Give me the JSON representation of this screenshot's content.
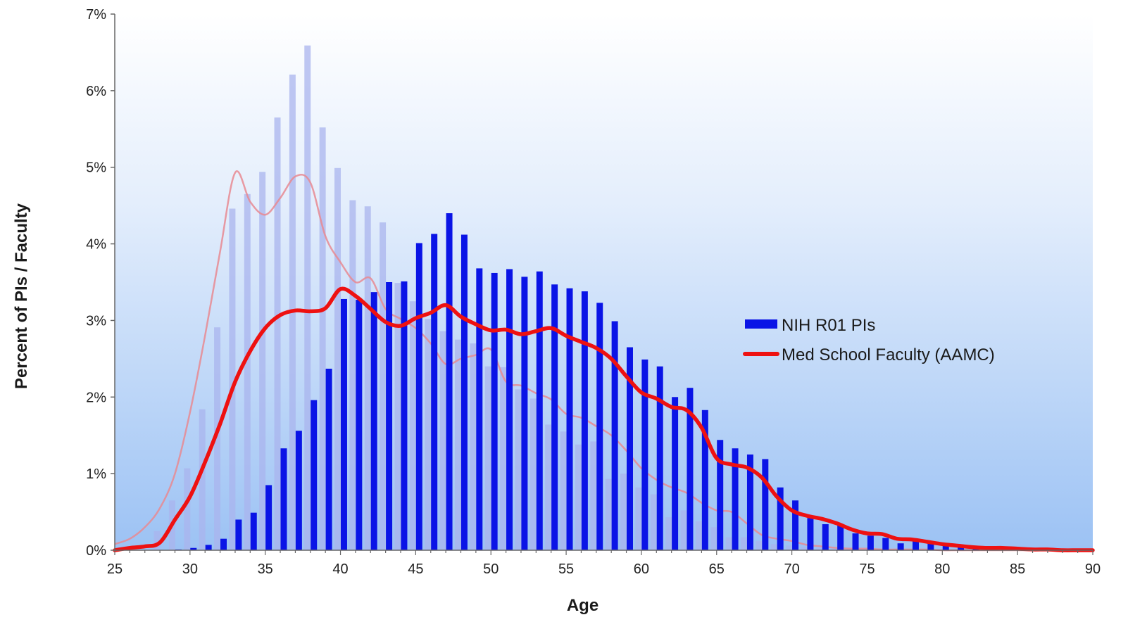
{
  "chart_data": {
    "type": "bar",
    "title": "",
    "xlabel": "Age",
    "ylabel": "Percent of PIs / Faculty",
    "xlim": [
      25,
      90
    ],
    "ylim": [
      0,
      7
    ],
    "x_ticks": [
      "25",
      "30",
      "35",
      "40",
      "45",
      "50",
      "55",
      "60",
      "65",
      "70",
      "75",
      "80",
      "85",
      "90"
    ],
    "y_ticks": [
      "0%",
      "1%",
      "2%",
      "3%",
      "4%",
      "5%",
      "6%",
      "7%"
    ],
    "y_unit": "%",
    "grid": false,
    "legend_position": "right",
    "series": [
      {
        "name": "NIH R01 PIs",
        "kind": "bar",
        "color": "#0a14e6",
        "x": [
          29,
          30,
          31,
          32,
          33,
          34,
          35,
          36,
          37,
          38,
          39,
          40,
          41,
          42,
          43,
          44,
          45,
          46,
          47,
          48,
          49,
          50,
          51,
          52,
          53,
          54,
          55,
          56,
          57,
          58,
          59,
          60,
          61,
          62,
          63,
          64,
          65,
          66,
          67,
          68,
          69,
          70,
          71,
          72,
          73,
          74,
          75,
          76,
          77,
          78,
          79,
          80,
          81,
          82,
          83
        ],
        "values": [
          0.01,
          0.03,
          0.07,
          0.15,
          0.4,
          0.49,
          0.85,
          1.33,
          1.56,
          1.96,
          2.37,
          3.28,
          3.27,
          3.37,
          3.5,
          3.51,
          4.01,
          4.13,
          4.4,
          4.12,
          3.68,
          3.62,
          3.67,
          3.57,
          3.64,
          3.47,
          3.42,
          3.38,
          3.23,
          2.99,
          2.65,
          2.49,
          2.4,
          2.0,
          2.12,
          1.83,
          1.44,
          1.33,
          1.25,
          1.19,
          0.82,
          0.65,
          0.42,
          0.34,
          0.33,
          0.22,
          0.19,
          0.16,
          0.09,
          0.12,
          0.09,
          0.07,
          0.06,
          0.04,
          0.03
        ]
      },
      {
        "name": "Med School Faculty (AAMC)",
        "kind": "line",
        "color": "#ee1111",
        "x": [
          25,
          26,
          27,
          28,
          29,
          30,
          31,
          32,
          33,
          34,
          35,
          36,
          37,
          38,
          39,
          40,
          41,
          42,
          43,
          44,
          45,
          46,
          47,
          48,
          49,
          50,
          51,
          52,
          53,
          54,
          55,
          56,
          57,
          58,
          59,
          60,
          61,
          62,
          63,
          64,
          65,
          66,
          67,
          68,
          69,
          70,
          71,
          72,
          73,
          74,
          75,
          76,
          77,
          78,
          79,
          80,
          81,
          82,
          83,
          84,
          85,
          86,
          87,
          88,
          89,
          90
        ],
        "values": [
          0.0,
          0.03,
          0.05,
          0.1,
          0.4,
          0.7,
          1.15,
          1.65,
          2.2,
          2.6,
          2.9,
          3.07,
          3.13,
          3.12,
          3.16,
          3.41,
          3.32,
          3.15,
          2.98,
          2.93,
          3.03,
          3.1,
          3.2,
          3.05,
          2.95,
          2.87,
          2.88,
          2.82,
          2.86,
          2.9,
          2.8,
          2.72,
          2.64,
          2.5,
          2.27,
          2.06,
          1.98,
          1.87,
          1.83,
          1.6,
          1.2,
          1.12,
          1.08,
          0.95,
          0.7,
          0.52,
          0.45,
          0.41,
          0.35,
          0.27,
          0.22,
          0.21,
          0.15,
          0.14,
          0.11,
          0.08,
          0.06,
          0.04,
          0.03,
          0.03,
          0.02,
          0.01,
          0.01,
          0.0,
          0.0,
          0.0
        ]
      },
      {
        "name": "",
        "kind": "bar-faded",
        "color": "#aab4ee",
        "x": [
          28,
          29,
          30,
          31,
          32,
          33,
          34,
          35,
          36,
          37,
          38,
          39,
          40,
          41,
          42,
          43,
          44,
          45,
          46,
          47,
          48,
          49,
          50,
          51,
          52,
          53,
          54,
          55,
          56,
          57,
          58,
          59,
          60,
          61,
          62,
          63,
          64,
          65,
          66,
          67,
          68,
          69,
          70,
          71,
          72,
          73,
          74,
          75
        ],
        "values": [
          0.25,
          0.65,
          1.07,
          1.84,
          2.91,
          4.46,
          4.65,
          4.94,
          5.65,
          6.21,
          6.59,
          5.52,
          4.99,
          4.57,
          4.49,
          4.28,
          3.49,
          3.25,
          3.02,
          2.86,
          2.75,
          2.7,
          2.4,
          2.39,
          2.1,
          1.98,
          1.64,
          1.55,
          1.38,
          1.42,
          0.93,
          1.0,
          0.82,
          0.73,
          0.43,
          0.52,
          0.38,
          0.3,
          0.17,
          0.17,
          0.12,
          0.08,
          0.06,
          0.04,
          0.03,
          0.02,
          0.02,
          0.01
        ]
      },
      {
        "name": "",
        "kind": "line-faded",
        "color": "#e88a92",
        "x": [
          25,
          26,
          27,
          28,
          29,
          30,
          31,
          32,
          33,
          34,
          35,
          36,
          37,
          38,
          39,
          40,
          41,
          42,
          43,
          44,
          45,
          46,
          47,
          48,
          49,
          50,
          51,
          52,
          53,
          54,
          55,
          56,
          57,
          58,
          59,
          60,
          61,
          62,
          63,
          64,
          65,
          66,
          67,
          68,
          69,
          70,
          71,
          72,
          73,
          74,
          75,
          76,
          77,
          78,
          79,
          80,
          81,
          82,
          83,
          84,
          85,
          86,
          87,
          88,
          89,
          90
        ],
        "values": [
          0.08,
          0.15,
          0.3,
          0.55,
          1.0,
          1.8,
          2.8,
          3.9,
          4.93,
          4.55,
          4.38,
          4.6,
          4.88,
          4.8,
          4.1,
          3.76,
          3.5,
          3.55,
          3.15,
          3.02,
          2.9,
          2.7,
          2.43,
          2.5,
          2.55,
          2.62,
          2.2,
          2.15,
          2.05,
          1.97,
          1.78,
          1.73,
          1.62,
          1.5,
          1.3,
          1.07,
          0.92,
          0.82,
          0.75,
          0.62,
          0.52,
          0.5,
          0.35,
          0.2,
          0.15,
          0.12,
          0.07,
          0.05,
          0.03,
          0.02,
          0.02,
          0.01,
          0.01,
          0.01,
          0.01,
          0.0,
          0.0,
          0.0,
          0.0,
          0.0,
          0.0,
          0.0,
          0.0,
          0.0,
          0.0,
          0.0
        ]
      }
    ]
  }
}
